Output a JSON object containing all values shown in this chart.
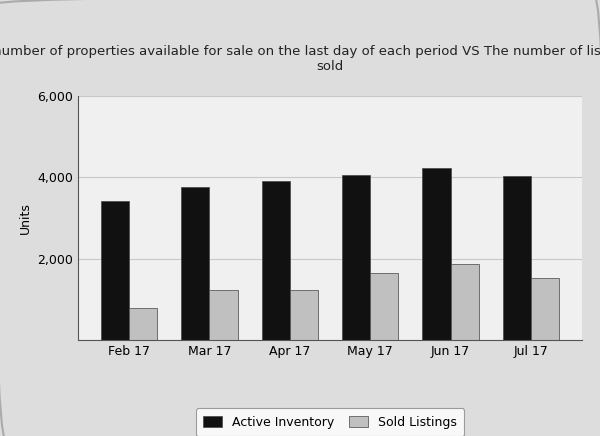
{
  "title": "The number of properties available for sale on the last day of each period VS The number of listed properties\nsold",
  "categories": [
    "Feb 17",
    "Mar 17",
    "Apr 17",
    "May 17",
    "Jun 17",
    "Jul 17"
  ],
  "active_inventory": [
    3420,
    3760,
    3920,
    4060,
    4230,
    4020
  ],
  "sold_listings": [
    780,
    1220,
    1240,
    1650,
    1860,
    1530
  ],
  "ylabel": "Units",
  "ylim": [
    0,
    6000
  ],
  "yticks": [
    0,
    2000,
    4000,
    6000
  ],
  "ytick_labels": [
    "",
    "2,000",
    "4,000",
    "6,000"
  ],
  "bar_color_active": "#111111",
  "bar_color_sold": "#c0c0c0",
  "bar_edge_color": "#444444",
  "background_color": "#dddddd",
  "plot_bg_color": "#f0f0f0",
  "grid_color": "#c8c8c8",
  "legend_labels": [
    "Active Inventory",
    "Sold Listings"
  ],
  "title_fontsize": 9.5,
  "axis_fontsize": 9,
  "tick_fontsize": 9,
  "legend_fontsize": 9,
  "bar_width": 0.35
}
